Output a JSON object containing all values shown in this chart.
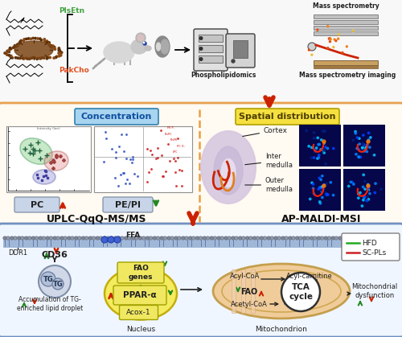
{
  "bg_color": "#ffffff",
  "panel1_border": "#d0d0d0",
  "panel2_border": "#e8a050",
  "panel3_border": "#7090c0",
  "PlsEtn_color": "#40a040",
  "PakCho_color": "#e05020",
  "concentration_label_bg": "#a8d4f0",
  "spatial_label_bg": "#f5e040",
  "PC_label_bg": "#c8d4e8",
  "PE_PI_label_bg": "#c8d4e8",
  "arrow_red": "#cc2200",
  "arrow_green": "#228822",
  "nucleus_color": "#f8ec60",
  "mito_color": "#f0c8a0",
  "HFD_color": "#22aa22",
  "SCPLs_color": "#cc2222",
  "cortex_label": "Cortex",
  "inter_medulla_label": "Inter\nmedulla",
  "outer_medulla_label": "Outer\nmedulla",
  "UPLC_label": "UPLC-QqQ-MS/MS",
  "MALDI_label": "AP-MALDI-MSI",
  "phospholipid_label": "Phospholipidomics",
  "msi_label": "Mass spectrometry imaging",
  "ms_label": "Mass spectrometry",
  "concentration_label": "Concentration",
  "spatial_label": "Spatial distribution",
  "PC_label": "PC",
  "PEPI_label": "PE/PI",
  "CD36_label": "CD36",
  "PPAR_label": "PPAR-α",
  "FAO_label": "FAO\ngenes",
  "Acox_label": "Acox-1",
  "FFA_label": "FFA",
  "DDR1_label": "DDR1",
  "TG_label": "TG",
  "AccumTG_label": "Accumulation of TG-\nenriched lipid droplet",
  "Nucleus_label": "Nucleus",
  "Mito_label": "Mitochondrion",
  "AcylCoA_label": "Acyl-CoA",
  "AcylCarnitine_label": "Acyl-carnitine",
  "FAO2_label": "FAO",
  "AcetylCoA_label": "Acetyl-CoA",
  "TCA_label": "TCA\ncycle",
  "MitoDys_label": "Mitochondrial\ndysfunction",
  "HFD_legend": "HFD",
  "SCPLs_legend": "SC-PLs"
}
